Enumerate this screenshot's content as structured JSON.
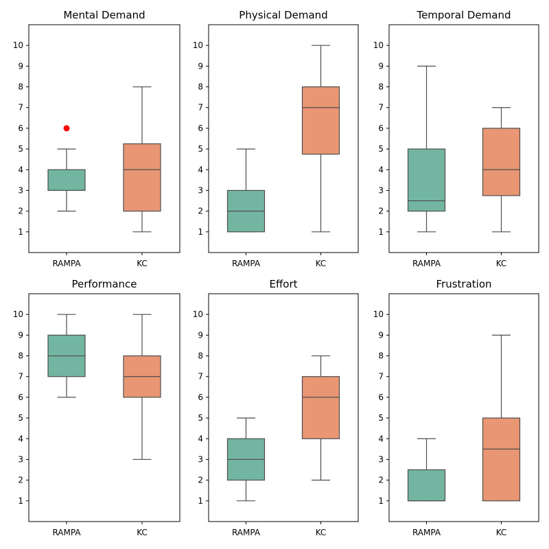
{
  "chart_data": [
    {
      "type": "box",
      "title": "Mental Demand",
      "categories": [
        "RAMPA",
        "KC"
      ],
      "ylim": [
        0,
        11
      ],
      "yticks": [
        1,
        2,
        3,
        4,
        5,
        6,
        7,
        8,
        9,
        10
      ],
      "boxes": [
        {
          "label": "RAMPA",
          "whisker_low": 2,
          "q1": 3,
          "median": 3,
          "q3": 4,
          "whisker_high": 5,
          "outliers": [
            6
          ]
        },
        {
          "label": "KC",
          "whisker_low": 1,
          "q1": 2,
          "median": 4,
          "q3": 5.25,
          "whisker_high": 8,
          "outliers": []
        }
      ]
    },
    {
      "type": "box",
      "title": "Physical Demand",
      "categories": [
        "RAMPA",
        "KC"
      ],
      "ylim": [
        0,
        11
      ],
      "yticks": [
        1,
        2,
        3,
        4,
        5,
        6,
        7,
        8,
        9,
        10
      ],
      "boxes": [
        {
          "label": "RAMPA",
          "whisker_low": 1,
          "q1": 1,
          "median": 2,
          "q3": 3,
          "whisker_high": 5,
          "outliers": []
        },
        {
          "label": "KC",
          "whisker_low": 1,
          "q1": 4.75,
          "median": 7,
          "q3": 8,
          "whisker_high": 10,
          "outliers": []
        }
      ]
    },
    {
      "type": "box",
      "title": "Temporal Demand",
      "categories": [
        "RAMPA",
        "KC"
      ],
      "ylim": [
        0,
        11
      ],
      "yticks": [
        1,
        2,
        3,
        4,
        5,
        6,
        7,
        8,
        9,
        10
      ],
      "boxes": [
        {
          "label": "RAMPA",
          "whisker_low": 1,
          "q1": 2,
          "median": 2.5,
          "q3": 5,
          "whisker_high": 9,
          "outliers": []
        },
        {
          "label": "KC",
          "whisker_low": 1,
          "q1": 2.75,
          "median": 4,
          "q3": 6,
          "whisker_high": 7,
          "outliers": []
        }
      ]
    },
    {
      "type": "box",
      "title": "Performance",
      "categories": [
        "RAMPA",
        "KC"
      ],
      "ylim": [
        0,
        11
      ],
      "yticks": [
        1,
        2,
        3,
        4,
        5,
        6,
        7,
        8,
        9,
        10
      ],
      "boxes": [
        {
          "label": "RAMPA",
          "whisker_low": 6,
          "q1": 7,
          "median": 8,
          "q3": 9,
          "whisker_high": 10,
          "outliers": []
        },
        {
          "label": "KC",
          "whisker_low": 3,
          "q1": 6,
          "median": 7,
          "q3": 8,
          "whisker_high": 10,
          "outliers": []
        }
      ]
    },
    {
      "type": "box",
      "title": "Effort",
      "categories": [
        "RAMPA",
        "KC"
      ],
      "ylim": [
        0,
        11
      ],
      "yticks": [
        1,
        2,
        3,
        4,
        5,
        6,
        7,
        8,
        9,
        10
      ],
      "boxes": [
        {
          "label": "RAMPA",
          "whisker_low": 1,
          "q1": 2,
          "median": 3,
          "q3": 4,
          "whisker_high": 5,
          "outliers": []
        },
        {
          "label": "KC",
          "whisker_low": 2,
          "q1": 4,
          "median": 6,
          "q3": 7,
          "whisker_high": 8,
          "outliers": []
        }
      ]
    },
    {
      "type": "box",
      "title": "Frustration",
      "categories": [
        "RAMPA",
        "KC"
      ],
      "ylim": [
        0,
        11
      ],
      "yticks": [
        1,
        2,
        3,
        4,
        5,
        6,
        7,
        8,
        9,
        10
      ],
      "boxes": [
        {
          "label": "RAMPA",
          "whisker_low": 1,
          "q1": 1,
          "median": 1,
          "q3": 2.5,
          "whisker_high": 4,
          "outliers": []
        },
        {
          "label": "KC",
          "whisker_low": 1,
          "q1": 1,
          "median": 3.5,
          "q3": 5,
          "whisker_high": 9,
          "outliers": []
        }
      ]
    }
  ],
  "colors": {
    "RAMPA": "#72b6a1",
    "KC": "#e99675",
    "outlier": "#ff0000",
    "line": "#4d4d4d"
  }
}
